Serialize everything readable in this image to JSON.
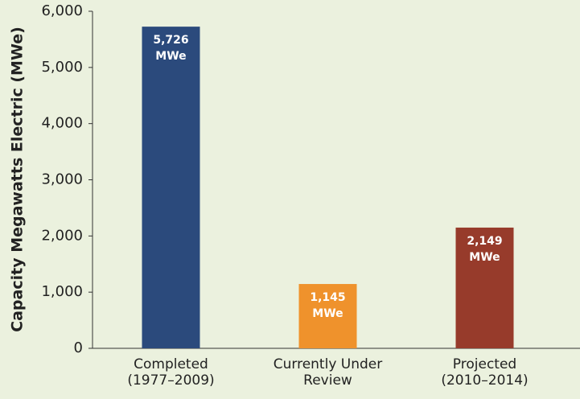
{
  "chart_data": {
    "type": "bar",
    "y_label": "Capacity Megawatts Electric (MWe)",
    "categories": [
      "Completed\n(1977–2009)",
      "Currently Under\nReview",
      "Projected\n(2010–2014)"
    ],
    "values": [
      5726,
      1145,
      2149
    ],
    "value_labels": [
      "5,726\nMWe",
      "1,145\nMWe",
      "2,149\nMWe"
    ],
    "colors": [
      "#2b4a7c",
      "#ef922c",
      "#973b2b"
    ],
    "ylim": [
      0,
      6000
    ],
    "yticks": [
      0,
      {
        "value": 1000,
        "label": "1,000"
      },
      {
        "value": 2000,
        "label": "2,000"
      },
      {
        "value": 3000,
        "label": "3,000"
      },
      {
        "value": 4000,
        "label": "4,000"
      },
      {
        "value": 5000,
        "label": "5,000"
      },
      {
        "value": 6000,
        "label": "6,000"
      }
    ],
    "grid": false
  }
}
